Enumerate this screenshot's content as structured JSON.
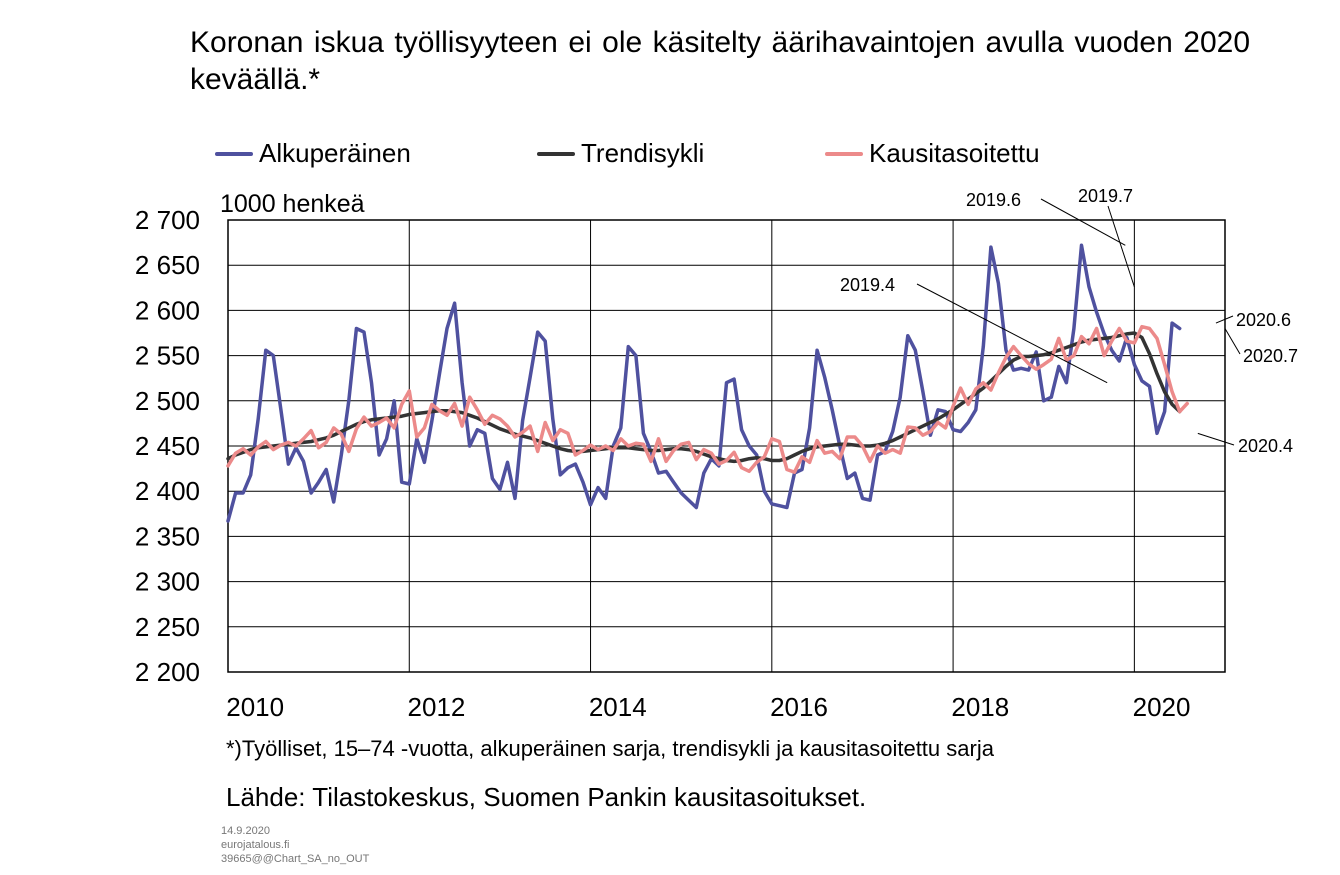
{
  "title": "Koronan iskua työllisyyteen ei ole käsitelty äärihavaintojen avulla vuoden 2020 keväällä.*",
  "unit_label": "1000 henkeä",
  "footnote": "*)Työlliset, 15–74 -vuotta, alkuperäinen sarja, trendisykli ja kausitasoitettu sarja",
  "source": "Lähde: Tilastokeskus, Suomen Pankin kausitasoitukset.",
  "meta": {
    "date": "14.9.2020",
    "site": "eurojatalous.fi",
    "code": "39665@@Chart_SA_no_OUT"
  },
  "legend": [
    {
      "label": "Alkuperäinen",
      "color": "#4F519F"
    },
    {
      "label": "Trendisykli",
      "color": "#333333"
    },
    {
      "label": "Kausitasoitettu",
      "color": "#EC8A8A"
    }
  ],
  "chart_data": {
    "type": "line",
    "xlim": [
      2009.7,
      2020.7
    ],
    "ylim": [
      2200,
      2700
    ],
    "yticks": [
      2200,
      2250,
      2300,
      2350,
      2400,
      2450,
      2500,
      2550,
      2600,
      2650,
      2700
    ],
    "ytick_labels": [
      "2 200",
      "2 250",
      "2 300",
      "2 350",
      "2 400",
      "2 450",
      "2 500",
      "2 550",
      "2 600",
      "2 650",
      "2 700"
    ],
    "xticks": [
      2010,
      2012,
      2014,
      2016,
      2018,
      2020
    ],
    "xtick_labels": [
      "2010",
      "2012",
      "2014",
      "2016",
      "2018",
      "2020"
    ],
    "vgrid": [
      2009.7,
      2011.7,
      2013.7,
      2015.7,
      2017.7,
      2019.7
    ],
    "grid": true,
    "legend_position": "top",
    "start": 2009.7,
    "series": [
      {
        "name": "Alkuperäinen",
        "color": "#4F519F",
        "values": [
          2367,
          2398,
          2398,
          2418,
          2480,
          2556,
          2550,
          2490,
          2430,
          2448,
          2433,
          2398,
          2410,
          2424,
          2388,
          2440,
          2500,
          2580,
          2576,
          2520,
          2440,
          2458,
          2500,
          2410,
          2408,
          2458,
          2432,
          2478,
          2530,
          2580,
          2608,
          2520,
          2450,
          2468,
          2464,
          2414,
          2402,
          2432,
          2392,
          2478,
          2526,
          2576,
          2566,
          2480,
          2418,
          2426,
          2430,
          2410,
          2385,
          2404,
          2392,
          2450,
          2470,
          2560,
          2550,
          2464,
          2444,
          2420,
          2422,
          2410,
          2398,
          2390,
          2382,
          2420,
          2436,
          2428,
          2520,
          2524,
          2468,
          2450,
          2440,
          2400,
          2386,
          2384,
          2382,
          2420,
          2424,
          2470,
          2556,
          2526,
          2490,
          2450,
          2414,
          2420,
          2392,
          2390,
          2440,
          2444,
          2466,
          2504,
          2572,
          2556,
          2510,
          2462,
          2490,
          2488,
          2468,
          2466,
          2476,
          2490,
          2560,
          2670,
          2630,
          2556,
          2534,
          2536,
          2534,
          2554,
          2500,
          2504,
          2538,
          2520,
          2580,
          2672,
          2626,
          2598,
          2574,
          2556,
          2544,
          2570,
          2540,
          2522,
          2516,
          2464,
          2488,
          2586,
          2580
        ]
      },
      {
        "name": "Trendisykli",
        "color": "#333333",
        "values": [
          2436,
          2440,
          2443,
          2446,
          2448,
          2449,
          2450,
          2451,
          2452,
          2453,
          2454,
          2455,
          2457,
          2459,
          2462,
          2466,
          2470,
          2474,
          2477,
          2479,
          2480,
          2481,
          2482,
          2483,
          2485,
          2486,
          2487,
          2488,
          2489,
          2489,
          2488,
          2487,
          2484,
          2481,
          2477,
          2473,
          2469,
          2466,
          2463,
          2461,
          2459,
          2456,
          2453,
          2450,
          2447,
          2445,
          2444,
          2444,
          2445,
          2446,
          2447,
          2448,
          2448,
          2448,
          2447,
          2446,
          2445,
          2445,
          2446,
          2447,
          2447,
          2446,
          2444,
          2441,
          2438,
          2436,
          2434,
          2433,
          2434,
          2436,
          2437,
          2436,
          2434,
          2434,
          2436,
          2440,
          2444,
          2447,
          2449,
          2450,
          2451,
          2452,
          2452,
          2451,
          2450,
          2450,
          2451,
          2453,
          2456,
          2460,
          2464,
          2468,
          2472,
          2476,
          2480,
          2485,
          2490,
          2496,
          2502,
          2508,
          2514,
          2522,
          2530,
          2538,
          2545,
          2549,
          2549,
          2550,
          2551,
          2553,
          2556,
          2559,
          2562,
          2565,
          2567,
          2568,
          2569,
          2570,
          2572,
          2574,
          2575,
          2570,
          2552,
          2530,
          2510,
          2496,
          2488
        ]
      },
      {
        "name": "Kausitasoitettu",
        "color": "#EC8A8A",
        "values": [
          2428,
          2442,
          2447,
          2440,
          2449,
          2455,
          2446,
          2451,
          2454,
          2450,
          2458,
          2467,
          2448,
          2454,
          2470,
          2463,
          2444,
          2469,
          2482,
          2472,
          2476,
          2481,
          2470,
          2496,
          2511,
          2460,
          2470,
          2496,
          2489,
          2484,
          2497,
          2472,
          2504,
          2490,
          2474,
          2484,
          2480,
          2472,
          2460,
          2465,
          2472,
          2444,
          2476,
          2456,
          2468,
          2464,
          2440,
          2445,
          2451,
          2446,
          2450,
          2445,
          2458,
          2450,
          2453,
          2452,
          2433,
          2458,
          2433,
          2445,
          2452,
          2454,
          2435,
          2446,
          2442,
          2430,
          2434,
          2443,
          2426,
          2422,
          2432,
          2438,
          2458,
          2455,
          2424,
          2421,
          2438,
          2432,
          2456,
          2442,
          2444,
          2436,
          2460,
          2460,
          2450,
          2433,
          2450,
          2442,
          2446,
          2442,
          2471,
          2470,
          2462,
          2466,
          2476,
          2470,
          2494,
          2514,
          2496,
          2513,
          2520,
          2512,
          2531,
          2548,
          2560,
          2550,
          2541,
          2535,
          2540,
          2546,
          2569,
          2545,
          2550,
          2571,
          2563,
          2580,
          2550,
          2566,
          2580,
          2566,
          2564,
          2582,
          2580,
          2569,
          2540,
          2510,
          2488,
          2497
        ]
      }
    ],
    "annotations": [
      {
        "label": "2019.4",
        "x": 2019.4,
        "y": 2520
      },
      {
        "label": "2019.6",
        "x": 2019.6,
        "y": 2672
      },
      {
        "label": "2019.7",
        "x": 2019.7,
        "y": 2626
      },
      {
        "label": "2020.6",
        "x": 2020.6,
        "y": 2586
      },
      {
        "label": "2020.7",
        "x": 2020.7,
        "y": 2580
      },
      {
        "label": "2020.4",
        "x": 2020.4,
        "y": 2464
      }
    ]
  }
}
